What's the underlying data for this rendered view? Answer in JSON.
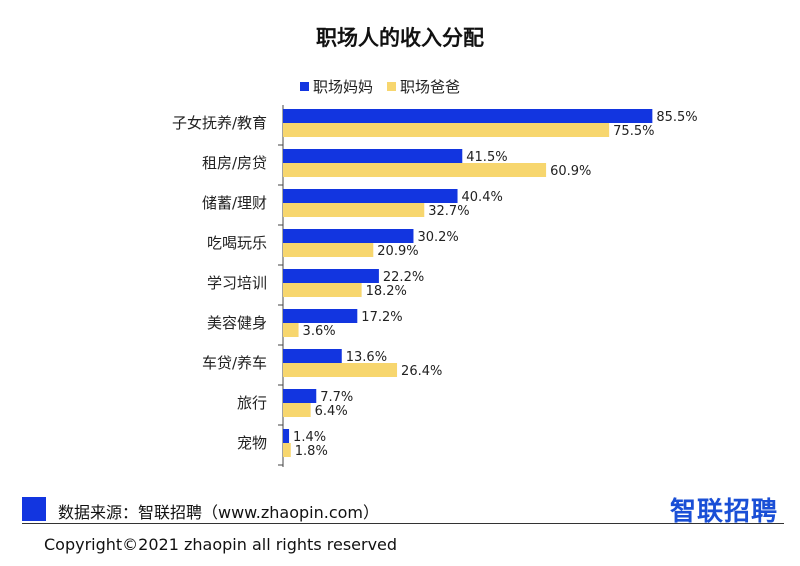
{
  "chart_data": {
    "type": "bar",
    "orientation": "horizontal",
    "title": "职场人的收入分配",
    "categories": [
      "子女抚养/教育",
      "租房/房贷",
      "储蓄/理财",
      "吃喝玩乐",
      "学习培训",
      "美容健身",
      "车贷/养车",
      "旅行",
      "宠物"
    ],
    "series": [
      {
        "name": "职场妈妈",
        "color": "#1235e0",
        "values": [
          85.5,
          41.5,
          40.4,
          30.2,
          22.2,
          17.2,
          13.6,
          7.7,
          1.4
        ],
        "labels": [
          "85.5%",
          "41.5%",
          "40.4%",
          "30.2%",
          "22.2%",
          "17.2%",
          "13.6%",
          "7.7%",
          "1.4%"
        ]
      },
      {
        "name": "职场爸爸",
        "color": "#f7d66e",
        "values": [
          75.5,
          60.9,
          32.7,
          20.9,
          18.2,
          3.6,
          26.4,
          6.4,
          1.8
        ],
        "labels": [
          "75.5%",
          "60.9%",
          "32.7%",
          "20.9%",
          "18.2%",
          "3.6%",
          "26.4%",
          "6.4%",
          "1.8%"
        ]
      }
    ],
    "xlim": [
      0,
      100
    ],
    "grid": false,
    "legend_position": "top-center"
  },
  "footer": {
    "source": "数据来源：智联招聘（www.zhaopin.com）",
    "brand": "智联招聘",
    "copyright": "Copyright©2021 zhaopin all rights reserved"
  }
}
